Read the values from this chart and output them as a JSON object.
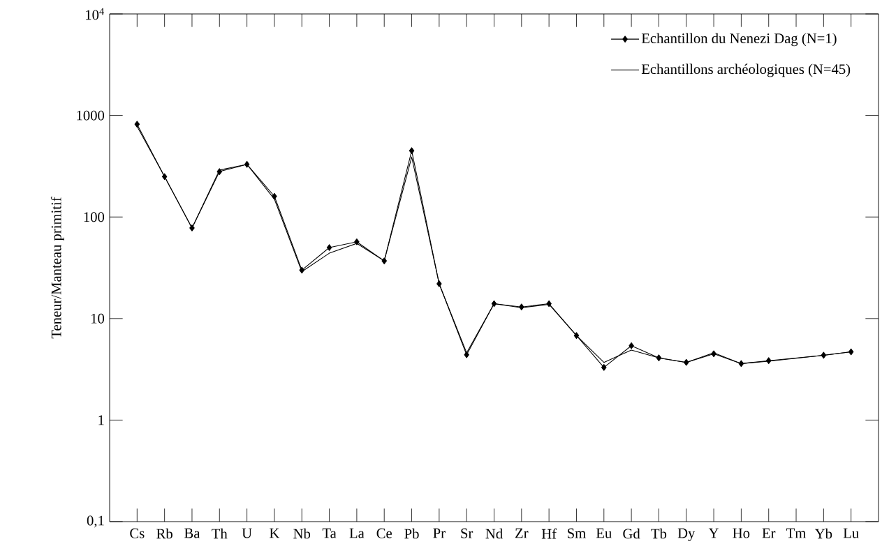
{
  "chart_data": {
    "type": "line",
    "ylabel": "Teneur/Manteau primitif",
    "categories": [
      "Cs",
      "Rb",
      "Ba",
      "Th",
      "U",
      "K",
      "Nb",
      "Ta",
      "La",
      "Ce",
      "Pb",
      "Pr",
      "Sr",
      "Nd",
      "Zr",
      "Hf",
      "Sm",
      "Eu",
      "Gd",
      "Tb",
      "Dy",
      "Y",
      "Ho",
      "Er",
      "Tm",
      "Yb",
      "Lu"
    ],
    "series": [
      {
        "name": "Echantillon du Nenezi Dag (N=1)",
        "color": "#000000",
        "marker": "diamond",
        "values": [
          820,
          250,
          78,
          280,
          330,
          160,
          30,
          50,
          57,
          37,
          450,
          22,
          4.4,
          14,
          13,
          14,
          6.8,
          3.3,
          5.4,
          4.1,
          3.7,
          4.5,
          3.6,
          3.85,
          null,
          4.35,
          4.7
        ]
      },
      {
        "name": "Echantillons archéologiques (N=45)",
        "color": "#000000",
        "marker": "none",
        "values": [
          780,
          250,
          78,
          290,
          330,
          150,
          29,
          44,
          55,
          37,
          390,
          22,
          4.6,
          14,
          12.8,
          13.8,
          6.8,
          3.7,
          4.9,
          4.1,
          3.7,
          4.6,
          3.6,
          3.8,
          null,
          4.35,
          4.7
        ]
      }
    ],
    "ylim": [
      0.1,
      10000
    ],
    "yticks": [
      {
        "value": 0.1,
        "label": "0,1"
      },
      1,
      10,
      100,
      1000,
      {
        "value": 10000,
        "label": "10$^{4}$"
      }
    ],
    "log": true,
    "legend": "top right",
    "line_style": "solid"
  }
}
